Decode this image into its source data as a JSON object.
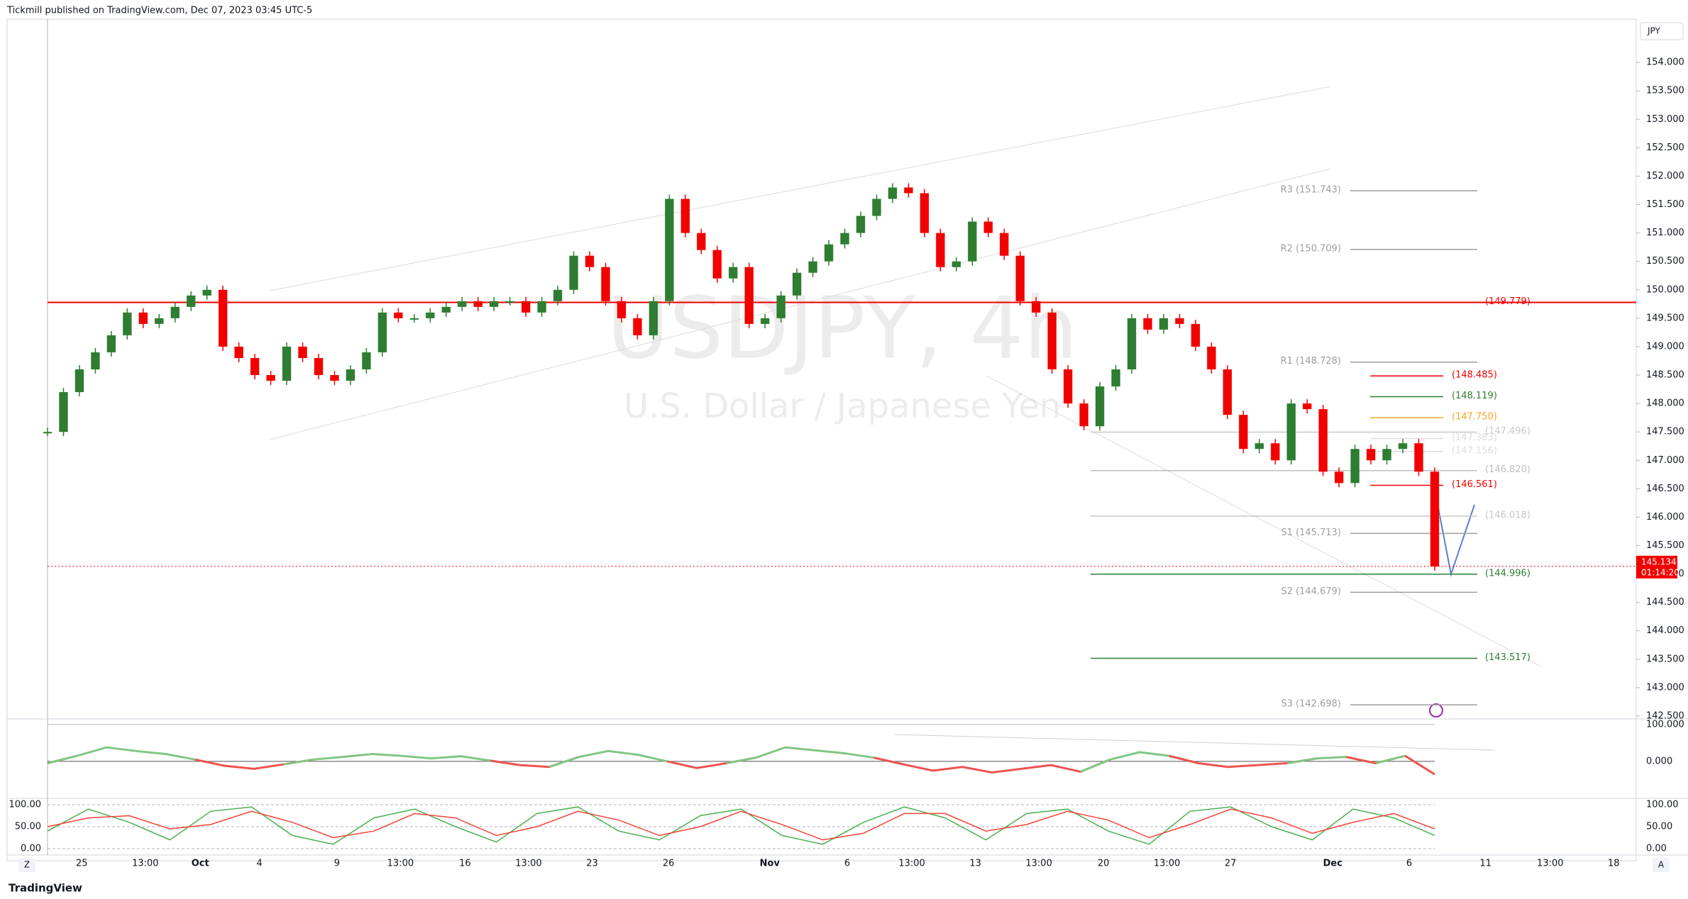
{
  "header": {
    "publisher": "Tickmill published on TradingView.com, Dec 07, 2023 03:45 UTC-5",
    "brand": "TradingView",
    "zoom_button": "Z",
    "auto_button": "A"
  },
  "chart_data": {
    "type": "candlestick",
    "title": "USDJPY, 4h",
    "subtitle": "U.S. Dollar / Japanese Yen",
    "currency": "JPY",
    "up_color": "#2e7d32",
    "down_color": "#f20000",
    "values": [
      147.5,
      148.2,
      148.6,
      148.9,
      149.2,
      149.6,
      149.4,
      149.5,
      149.7,
      149.9,
      150.0,
      149.0,
      148.8,
      148.5,
      148.4,
      149.0,
      148.8,
      148.5,
      148.4,
      148.6,
      148.9,
      149.6,
      149.5,
      149.5,
      149.6,
      149.7,
      149.8,
      149.7,
      149.8,
      149.8,
      149.6,
      149.8,
      150.0,
      150.6,
      150.4,
      149.8,
      149.5,
      149.2,
      149.8,
      151.6,
      151.0,
      150.7,
      150.2,
      150.4,
      149.4,
      149.5,
      149.9,
      150.3,
      150.5,
      150.8,
      151.0,
      151.3,
      151.6,
      151.8,
      151.7,
      151.0,
      150.4,
      150.5,
      151.2,
      151.0,
      150.6,
      149.8,
      149.6,
      148.6,
      148.0,
      147.6,
      148.3,
      148.6,
      149.5,
      149.3,
      149.5,
      149.4,
      149.0,
      148.6,
      147.8,
      147.2,
      147.3,
      147.0,
      148.0,
      147.9,
      146.8,
      146.6,
      147.2,
      147.0,
      147.2,
      147.3,
      146.8,
      145.134
    ],
    "ylim": [
      142.45,
      154.75
    ],
    "yticks": [
      {
        "value": 142.5,
        "label": "142.500"
      },
      {
        "value": 143,
        "label": "143.000"
      },
      {
        "value": 143.5,
        "label": "143.500"
      },
      {
        "value": 144,
        "label": "144.000"
      },
      {
        "value": 144.5,
        "label": "144.500"
      },
      {
        "value": 145,
        "label": "145.000"
      },
      {
        "value": 145.5,
        "label": "145.500"
      },
      {
        "value": 146,
        "label": "146.000"
      },
      {
        "value": 146.5,
        "label": "146.500"
      },
      {
        "value": 147,
        "label": "147.000"
      },
      {
        "value": 147.5,
        "label": "147.500"
      },
      {
        "value": 148,
        "label": "148.000"
      },
      {
        "value": 148.5,
        "label": "148.500"
      },
      {
        "value": 149,
        "label": "149.000"
      },
      {
        "value": 149.5,
        "label": "149.500"
      },
      {
        "value": 150,
        "label": "150.000"
      },
      {
        "value": 150.5,
        "label": "150.500"
      },
      {
        "value": 151,
        "label": "151.000"
      },
      {
        "value": 151.5,
        "label": "151.500"
      },
      {
        "value": 152,
        "label": "152.000"
      },
      {
        "value": 152.5,
        "label": "152.500"
      },
      {
        "value": 153,
        "label": "153.000"
      },
      {
        "value": 153.5,
        "label": "153.500"
      },
      {
        "value": 154,
        "label": "154.000"
      }
    ],
    "x_labels": [
      "25",
      "13:00",
      "Oct",
      "4",
      "9",
      "13:00",
      "16",
      "13:00",
      "23",
      "26",
      "Nov",
      "6",
      "13:00",
      "13",
      "13:00",
      "20",
      "13:00",
      "27",
      "Dec",
      "6",
      "11",
      "13:00",
      "18"
    ],
    "last_price": 145.134,
    "countdown": "01:14:20",
    "last_price_color": "#f20000",
    "levels": [
      {
        "label": "R3 (151.743)",
        "value": 151.743,
        "color": "#9e9e9e",
        "kind": "pivot"
      },
      {
        "label": "R2 (150.709)",
        "value": 150.709,
        "color": "#9e9e9e",
        "kind": "pivot"
      },
      {
        "label": "(149.779)",
        "value": 149.779,
        "color": "#f20000",
        "kind": "full"
      },
      {
        "label": "R1 (148.728)",
        "value": 148.728,
        "color": "#9e9e9e",
        "kind": "pivot"
      },
      {
        "label": "(148.485)",
        "value": 148.485,
        "color": "#f20000",
        "kind": "short"
      },
      {
        "label": "(148.119)",
        "value": 148.119,
        "color": "#2e7d32",
        "kind": "short"
      },
      {
        "label": "(147.750)",
        "value": 147.75,
        "color": "#f5a623",
        "kind": "short"
      },
      {
        "label": "(147.496)",
        "value": 147.496,
        "color": "#c8c8c8",
        "kind": "long"
      },
      {
        "label": "(147.383)",
        "value": 147.383,
        "color": "#dddddd",
        "kind": "short"
      },
      {
        "label": "(147.156)",
        "value": 147.156,
        "color": "#dddddd",
        "kind": "short"
      },
      {
        "label": "(146.820)",
        "value": 146.82,
        "color": "#bdbdbd",
        "kind": "long"
      },
      {
        "label": "(146.561)",
        "value": 146.561,
        "color": "#f20000",
        "kind": "short"
      },
      {
        "label": "(146.018)",
        "value": 146.018,
        "color": "#c8c8c8",
        "kind": "long"
      },
      {
        "label": "S1 (145.713)",
        "value": 145.713,
        "color": "#9e9e9e",
        "kind": "pivot"
      },
      {
        "label": "(144.996)",
        "value": 144.996,
        "color": "#2e7d32",
        "kind": "long"
      },
      {
        "label": "S2 (144.679)",
        "value": 144.679,
        "color": "#9e9e9e",
        "kind": "pivot"
      },
      {
        "label": "(143.517)",
        "value": 143.517,
        "color": "#2e7d32",
        "kind": "long"
      },
      {
        "label": "S3 (142.698)",
        "value": 142.698,
        "color": "#9e9e9e",
        "kind": "pivot"
      }
    ],
    "panels": [
      {
        "ylim": [
          -100,
          115
        ],
        "yticks": [
          {
            "value": 100,
            "label": "100.000"
          },
          {
            "value": 0,
            "label": "0.000"
          }
        ],
        "zero_line": true,
        "series": [
          {
            "color": "#81c784",
            "neg_color": "#ef5350",
            "values": [
              -5,
              15,
              38,
              28,
              20,
              5,
              -12,
              -20,
              -8,
              5,
              12,
              20,
              15,
              8,
              14,
              2,
              -10,
              -15,
              12,
              28,
              18,
              0,
              -18,
              -5,
              10,
              38,
              30,
              22,
              10,
              -8,
              -25,
              -15,
              -30,
              -20,
              -10,
              -28,
              5,
              25,
              15,
              -5,
              -15,
              -10,
              -5,
              8,
              12,
              -5,
              15,
              -35
            ]
          }
        ]
      },
      {
        "ylim": [
          -14.5,
          114.5
        ],
        "yticks": [
          {
            "value": 100,
            "label": "100.00"
          },
          {
            "value": 50,
            "label": "50.00"
          },
          {
            "value": 0,
            "label": "0.00"
          }
        ],
        "series": [
          {
            "color": "#4caf50",
            "values": [
              40,
              90,
              60,
              20,
              85,
              95,
              30,
              10,
              70,
              90,
              50,
              15,
              80,
              95,
              40,
              20,
              75,
              90,
              30,
              10,
              60,
              95,
              70,
              20,
              80,
              90,
              40,
              10,
              85,
              95,
              50,
              20,
              90,
              70,
              30
            ]
          },
          {
            "color": "#f44336",
            "values": [
              50,
              70,
              75,
              45,
              55,
              85,
              60,
              25,
              40,
              80,
              70,
              30,
              50,
              85,
              65,
              30,
              50,
              85,
              55,
              20,
              35,
              80,
              80,
              40,
              55,
              85,
              65,
              25,
              55,
              90,
              70,
              35,
              60,
              80,
              45
            ]
          }
        ]
      }
    ]
  }
}
